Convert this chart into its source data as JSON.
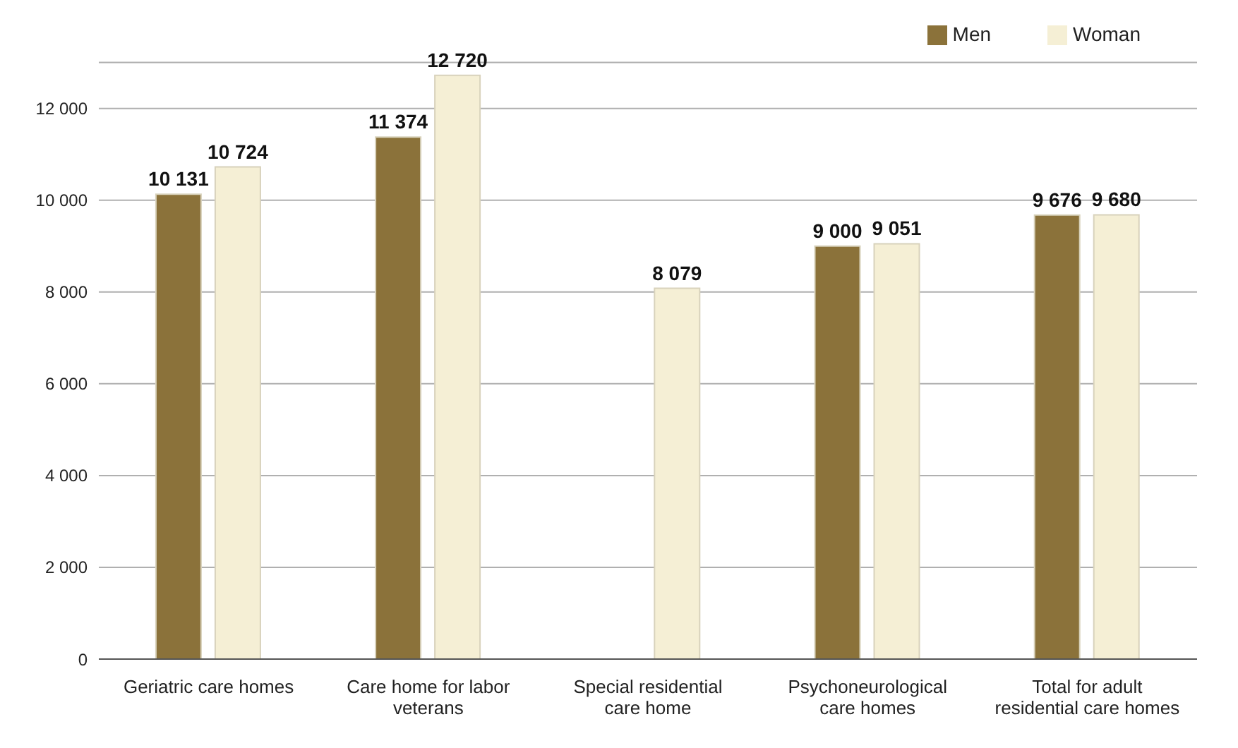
{
  "chart_data": {
    "type": "bar",
    "categories": [
      "Geriatric care homes",
      "Care home for labor veterans",
      "Special residential care home",
      "Psychoneurological care homes",
      "Total for adult residential care homes"
    ],
    "series": [
      {
        "name": "Men",
        "color": "#8b723a",
        "values": [
          10131,
          11374,
          null,
          9000,
          9676
        ],
        "value_labels": [
          "10 131",
          "11 374",
          null,
          "9 000",
          "9 676"
        ]
      },
      {
        "name": "Woman",
        "color": "#f5efd5",
        "values": [
          10724,
          12720,
          8079,
          9051,
          9680
        ],
        "value_labels": [
          "10 724",
          "12 720",
          "8 079",
          "9 051",
          "9 680"
        ]
      }
    ],
    "ylim": [
      0,
      13000
    ],
    "yticks": [
      0,
      {
        "value": 2000,
        "label": "2 000"
      },
      {
        "value": 4000,
        "label": "4 000"
      },
      {
        "value": 6000,
        "label": "6 000"
      },
      {
        "value": 8000,
        "label": "8 000"
      },
      {
        "value": 10000,
        "label": "10 000"
      },
      {
        "value": 12000,
        "label": "12 000"
      }
    ],
    "grid": "y",
    "legend": "top right"
  }
}
